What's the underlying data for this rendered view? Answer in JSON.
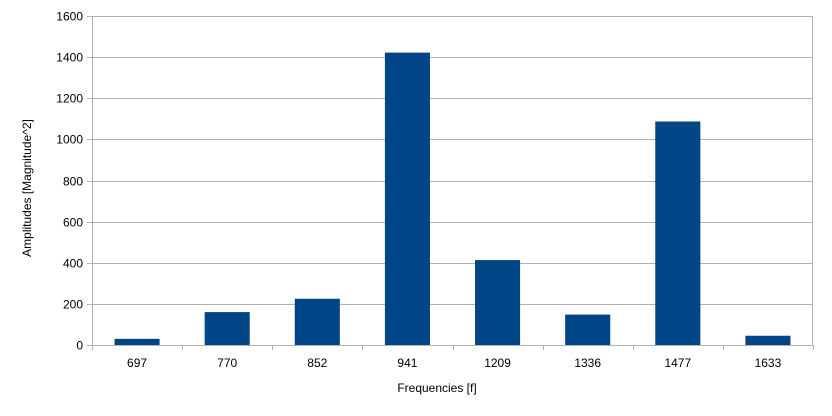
{
  "chart_data": {
    "type": "bar",
    "categories": [
      "697",
      "770",
      "852",
      "941",
      "1209",
      "1336",
      "1477",
      "1633"
    ],
    "values": [
      30,
      160,
      225,
      1422,
      413,
      148,
      1087,
      45
    ],
    "title": "",
    "xlabel": "Frequencies [f]",
    "ylabel": "Amplitudes [Magnitude^2]",
    "ylim": [
      0,
      1600
    ],
    "yticks": [
      0,
      200,
      400,
      600,
      800,
      1000,
      1200,
      1400,
      1600
    ],
    "grid": true,
    "bar_color": "#004586",
    "grid_color": "#b3b3b3"
  }
}
